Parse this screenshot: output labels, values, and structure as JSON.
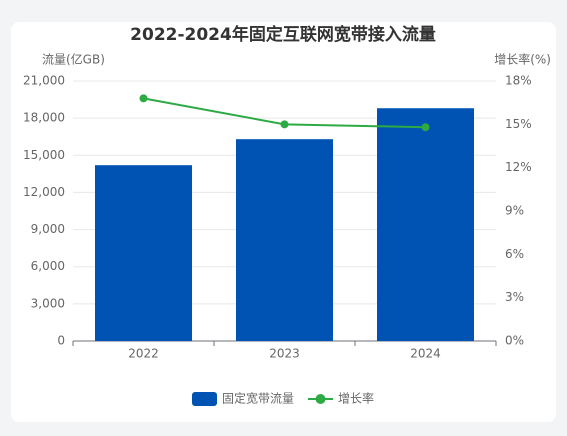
{
  "chart_data": {
    "type": "bar_line",
    "title": "2022-2024年固定互联网宽带接入流量",
    "y_label": "流量(亿GB)",
    "y2_label": "增长率(%)",
    "categories": [
      "2022",
      "2023",
      "2024"
    ],
    "series": [
      {
        "name": "固定宽带流量",
        "type": "bar",
        "color": "#0053b3",
        "values": [
          14200,
          16300,
          18800
        ]
      },
      {
        "name": "增长率",
        "type": "line",
        "color": "#2eaa45",
        "axis": "y2",
        "values": [
          16.8,
          15.0,
          14.8
        ]
      }
    ],
    "ylim": [
      0,
      21000
    ],
    "yticks": [
      0,
      {
        "value": 3000,
        "label": "3,000"
      },
      {
        "value": 6000,
        "label": "6,000"
      },
      {
        "value": 9000,
        "label": "9,000"
      },
      {
        "value": 12000,
        "label": "12,000"
      },
      {
        "value": 15000,
        "label": "15,000"
      },
      {
        "value": 18000,
        "label": "18,000"
      },
      {
        "value": 21000,
        "label": "21,000"
      }
    ],
    "y2lim": [
      0,
      18
    ],
    "y2ticks": [
      {
        "value": 0,
        "label": "0%"
      },
      {
        "value": 3,
        "label": "3%"
      },
      {
        "value": 6,
        "label": "6%"
      },
      {
        "value": 9,
        "label": "9%"
      },
      {
        "value": 12,
        "label": "12%"
      },
      {
        "value": 15,
        "label": "15%"
      },
      {
        "value": 18,
        "label": "18%"
      }
    ],
    "grid": true,
    "legend": "bottom"
  }
}
